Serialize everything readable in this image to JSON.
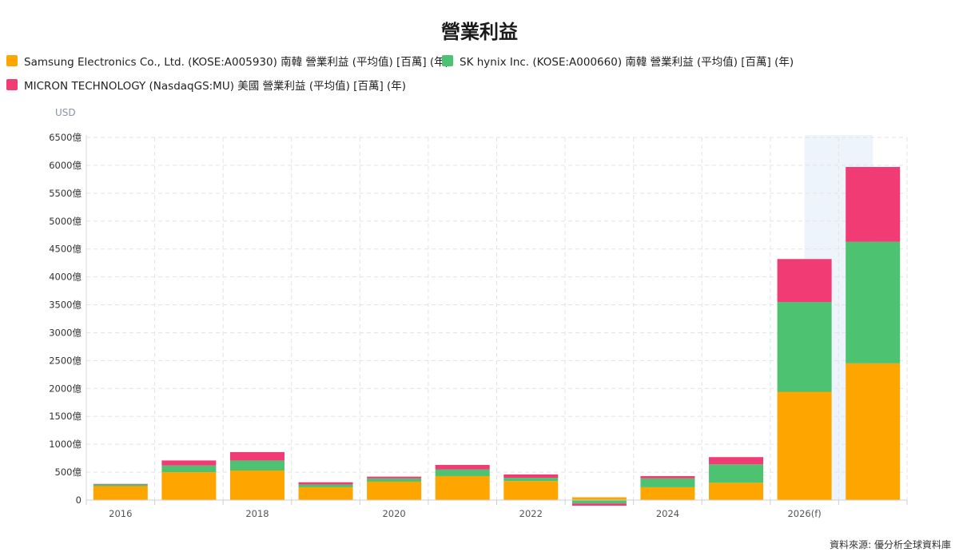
{
  "title": "營業利益",
  "unit_label": "USD",
  "source": "資料來源: 優分析全球資料庫",
  "chart_data": {
    "type": "bar",
    "stacked": true,
    "title": "營業利益",
    "xlabel": "",
    "ylabel": "USD",
    "categories": [
      "2016",
      "2017",
      "2018",
      "2019",
      "2020",
      "2021",
      "2022",
      "2023",
      "2024",
      "2025",
      "2026(f)",
      "2027(f)"
    ],
    "x_tick_labels": [
      "2016",
      "",
      "2018",
      "",
      "2020",
      "",
      "2022",
      "",
      "2024",
      "",
      "2026(f)",
      ""
    ],
    "ylim": [
      0,
      6500
    ],
    "y_ticks": [
      0,
      500,
      1000,
      1500,
      2000,
      2500,
      3000,
      3500,
      4000,
      4500,
      5000,
      5500,
      6000,
      6500
    ],
    "y_tick_labels": [
      "0",
      "500億",
      "1000億",
      "1500億",
      "2000億",
      "2500億",
      "3000億",
      "3500億",
      "4000億",
      "4500億",
      "5000億",
      "5500億",
      "6000億",
      "6500億"
    ],
    "grid": true,
    "legend_position": "top-left",
    "highlight_categories": [
      "2026(f)"
    ],
    "series": [
      {
        "name": "Samsung Electronics Co., Ltd. (KOSE:A005930) 南韓 營業利益 (平均值) [百萬] (年)",
        "color": "#FFA500",
        "values": [
          250,
          500,
          530,
          230,
          330,
          430,
          340,
          50,
          230,
          310,
          1940,
          2450
        ]
      },
      {
        "name": "SK hynix Inc. (KOSE:A000660) 南韓 營業利益 (平均值) [百萬] (年)",
        "color": "#4DC270",
        "values": [
          30,
          120,
          180,
          50,
          60,
          120,
          60,
          -60,
          160,
          330,
          1610,
          2180
        ]
      },
      {
        "name": "MICRON TECHNOLOGY (NasdaqGS:MU) 美國 營業利益 (平均值) [百萬] (年)",
        "color": "#F03B75",
        "values": [
          10,
          90,
          150,
          40,
          30,
          80,
          60,
          -40,
          40,
          130,
          770,
          1340
        ]
      }
    ]
  }
}
